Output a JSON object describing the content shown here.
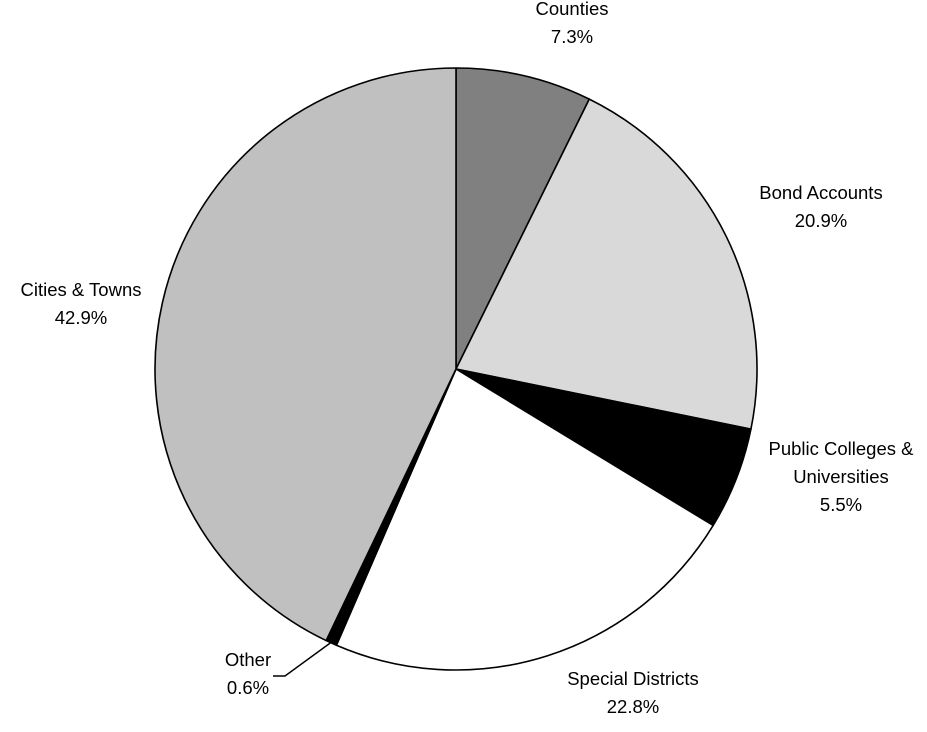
{
  "chart_data": {
    "type": "pie",
    "title": "",
    "start": "top",
    "direction": "clockwise",
    "legend": "none",
    "slices": [
      {
        "label": "Counties",
        "value": 7.3,
        "value_label": "7.3%",
        "color": "#808080"
      },
      {
        "label": "Bond Accounts",
        "value": 20.9,
        "value_label": "20.9%",
        "color": "#d9d9d9"
      },
      {
        "label": "Public Colleges & Universities",
        "label_lines": [
          "Public Colleges &",
          "Universities"
        ],
        "value": 5.5,
        "value_label": "5.5%",
        "color": "#000000"
      },
      {
        "label": "Special Districts",
        "value": 22.8,
        "value_label": "22.8%",
        "color": "#ffffff"
      },
      {
        "label": "Other",
        "value": 0.6,
        "value_label": "0.6%",
        "color": "#000000"
      },
      {
        "label": "Cities & Towns",
        "value": 42.9,
        "value_label": "42.9%",
        "color": "#c0c0c0"
      }
    ]
  }
}
